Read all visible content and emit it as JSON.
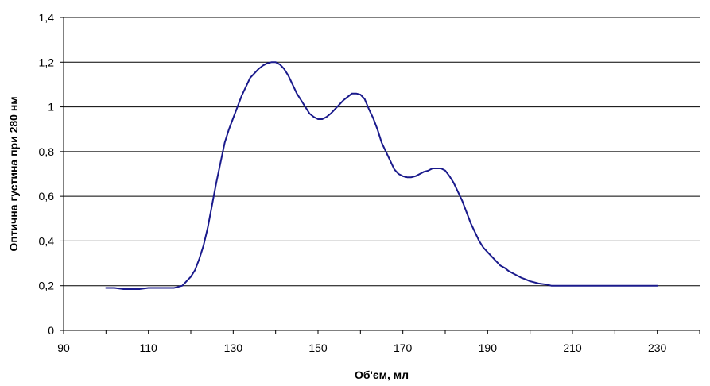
{
  "chart_data": {
    "type": "line",
    "title": "",
    "xlabel": "Об'єм, мл",
    "ylabel": "Оптична густина при 280 нм",
    "xlim": [
      90,
      240
    ],
    "ylim": [
      0,
      1.4
    ],
    "x_ticks": [
      90,
      110,
      130,
      150,
      170,
      190,
      210,
      230
    ],
    "x_tick_labels": [
      "90",
      "110",
      "130",
      "150",
      "170",
      "190",
      "210",
      "230"
    ],
    "y_ticks": [
      0,
      0.2,
      0.4,
      0.6,
      0.8,
      1.0,
      1.2,
      1.4
    ],
    "y_tick_labels": [
      "0",
      "0,2",
      "0,4",
      "0,6",
      "0,8",
      "1",
      "1,2",
      "1,4"
    ],
    "grid": "horizontal",
    "legend": "none",
    "line_color": "#1a1a8c",
    "grid_color": "#000000",
    "series": [
      {
        "x": [
          100,
          102,
          104,
          106,
          108,
          110,
          112,
          114,
          116,
          118,
          120,
          121,
          122,
          123,
          124,
          125,
          126,
          127,
          128,
          129,
          130,
          131,
          132,
          133,
          134,
          135,
          136,
          137,
          138,
          139,
          140,
          141,
          142,
          143,
          144,
          145,
          146,
          147,
          148,
          149,
          150,
          151,
          152,
          153,
          154,
          155,
          156,
          157,
          158,
          159,
          160,
          161,
          162,
          163,
          164,
          165,
          166,
          167,
          168,
          169,
          170,
          171,
          172,
          173,
          174,
          175,
          176,
          177,
          178,
          179,
          180,
          181,
          182,
          183,
          184,
          185,
          186,
          187,
          188,
          189,
          190,
          191,
          192,
          193,
          194,
          195,
          196,
          197,
          198,
          199,
          200,
          202,
          204,
          205,
          210,
          215,
          220,
          225,
          230
        ],
        "y": [
          0.19,
          0.19,
          0.185,
          0.185,
          0.185,
          0.19,
          0.19,
          0.19,
          0.19,
          0.2,
          0.24,
          0.27,
          0.32,
          0.38,
          0.46,
          0.56,
          0.66,
          0.75,
          0.84,
          0.9,
          0.95,
          1.0,
          1.05,
          1.09,
          1.13,
          1.15,
          1.17,
          1.185,
          1.195,
          1.2,
          1.2,
          1.19,
          1.17,
          1.14,
          1.1,
          1.06,
          1.03,
          1.0,
          0.97,
          0.955,
          0.945,
          0.945,
          0.955,
          0.97,
          0.99,
          1.01,
          1.03,
          1.045,
          1.06,
          1.06,
          1.055,
          1.035,
          0.99,
          0.95,
          0.9,
          0.84,
          0.8,
          0.76,
          0.72,
          0.7,
          0.69,
          0.685,
          0.685,
          0.69,
          0.7,
          0.71,
          0.715,
          0.725,
          0.725,
          0.725,
          0.715,
          0.69,
          0.66,
          0.62,
          0.58,
          0.53,
          0.48,
          0.44,
          0.4,
          0.37,
          0.35,
          0.33,
          0.31,
          0.29,
          0.28,
          0.265,
          0.255,
          0.245,
          0.235,
          0.228,
          0.22,
          0.21,
          0.205,
          0.2,
          0.2,
          0.2,
          0.2,
          0.2,
          0.2
        ]
      }
    ]
  }
}
